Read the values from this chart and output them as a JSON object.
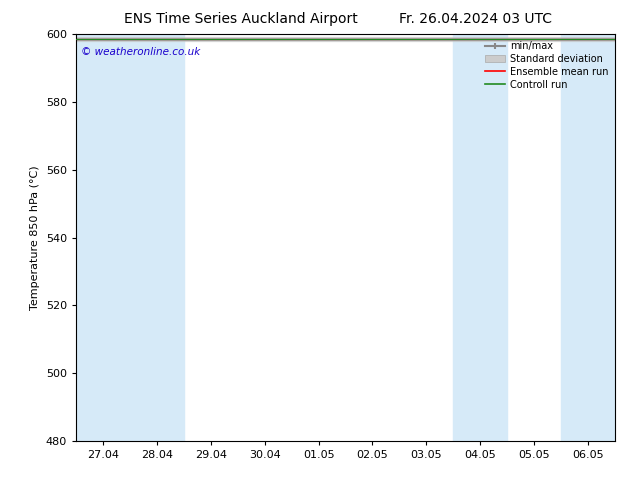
{
  "title_left": "ENS Time Series Auckland Airport",
  "title_right": "Fr. 26.04.2024 03 UTC",
  "ylabel": "Temperature 850 hPa (°C)",
  "xlim_dates": [
    "27.04",
    "28.04",
    "29.04",
    "30.04",
    "01.05",
    "02.05",
    "03.05",
    "04.05",
    "05.05",
    "06.05"
  ],
  "ylim": [
    480,
    600
  ],
  "yticks": [
    480,
    500,
    520,
    540,
    560,
    580,
    600
  ],
  "background_color": "#ffffff",
  "plot_bg_color": "#ffffff",
  "shaded_color": "#d6eaf8",
  "watermark": "© weatheronline.co.uk",
  "watermark_color": "#1a00cc",
  "legend_labels": [
    "min/max",
    "Standard deviation",
    "Ensemble mean run",
    "Controll run"
  ],
  "legend_line_colors": [
    "#aaaaaa",
    "#cccccc",
    "#ff0000",
    "#008000"
  ],
  "data_value": 598.5,
  "title_fontsize": 10,
  "axis_label_fontsize": 8,
  "tick_fontsize": 8
}
